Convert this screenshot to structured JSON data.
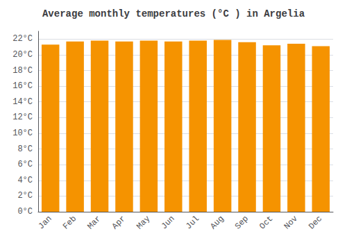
{
  "chart_data": {
    "type": "bar",
    "title": "Average monthly temperatures (°C ) in Argelia",
    "categories": [
      "Jan",
      "Feb",
      "Mar",
      "Apr",
      "May",
      "Jun",
      "Jul",
      "Aug",
      "Sep",
      "Oct",
      "Nov",
      "Dec"
    ],
    "values": [
      21.3,
      21.7,
      21.8,
      21.7,
      21.8,
      21.7,
      21.8,
      21.9,
      21.6,
      21.2,
      21.4,
      21.1
    ],
    "color": "#F59300",
    "ylim": [
      0,
      23
    ],
    "yticks": [
      {
        "value": 0,
        "label": "0°C"
      },
      {
        "value": 2,
        "label": "2°C"
      },
      {
        "value": 4,
        "label": "4°C"
      },
      {
        "value": 6,
        "label": "6°C"
      },
      {
        "value": 8,
        "label": "8°C"
      },
      {
        "value": 10,
        "label": "10°C"
      },
      {
        "value": 12,
        "label": "12°C"
      },
      {
        "value": 14,
        "label": "14°C"
      },
      {
        "value": 16,
        "label": "16°C"
      },
      {
        "value": 18,
        "label": "18°C"
      },
      {
        "value": 20,
        "label": "20°C"
      },
      {
        "value": 22,
        "label": "22°C"
      }
    ],
    "grid": true
  }
}
